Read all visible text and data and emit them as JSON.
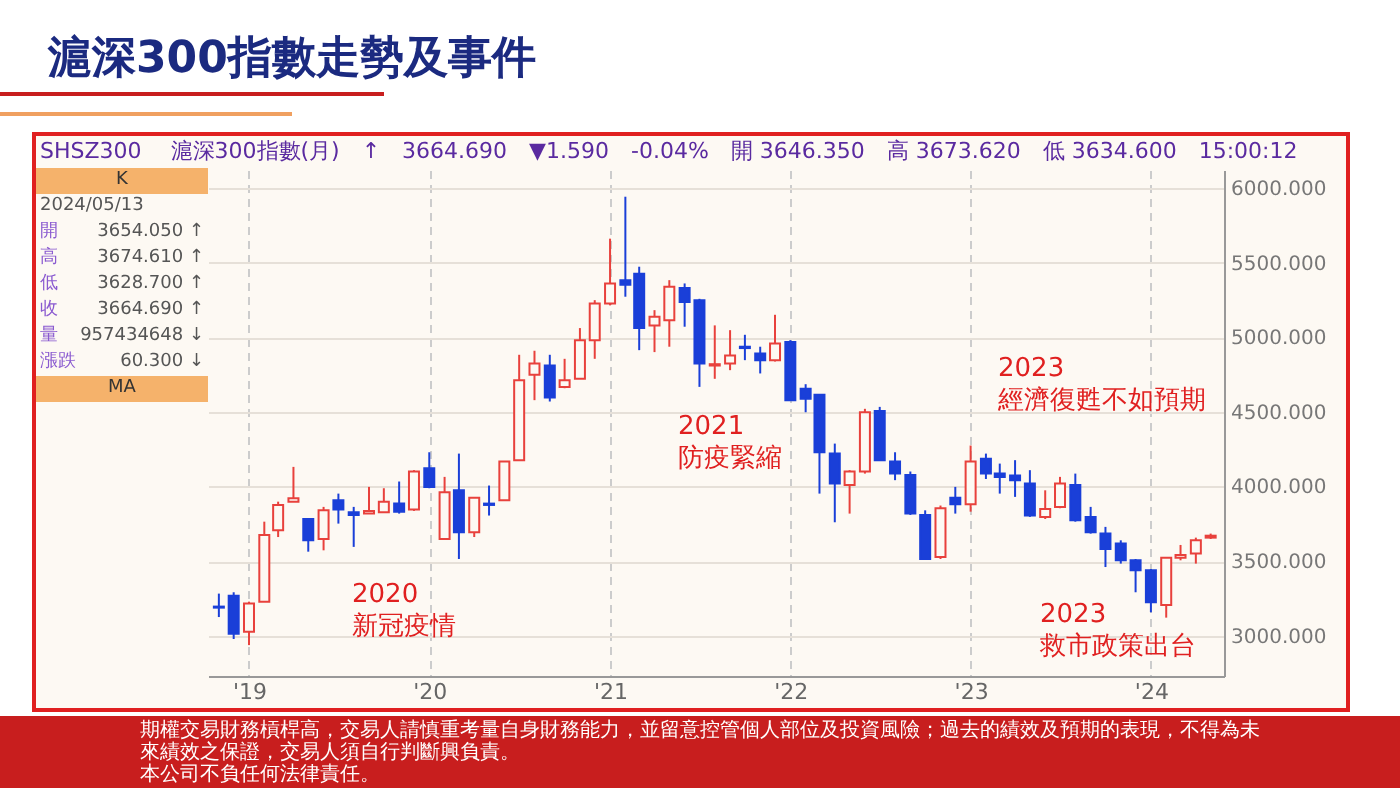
{
  "chart_data": {
    "type": "candlestick",
    "title": "滬深300指數走勢及事件",
    "subtitle": "SHSZ300　 滬深300指數(月)　↑　3664.690　▼1.590　-0.04%　開 3646.350　高 3673.620　低 3634.600　15:00:12",
    "x": [
      "2018-11",
      "2018-12",
      "2019-01",
      "2019-02",
      "2019-03",
      "2019-04",
      "2019-05",
      "2019-06",
      "2019-07",
      "2019-08",
      "2019-09",
      "2019-10",
      "2019-11",
      "2019-12",
      "2020-01",
      "2020-02",
      "2020-03",
      "2020-04",
      "2020-05",
      "2020-06",
      "2020-07",
      "2020-08",
      "2020-09",
      "2020-10",
      "2020-11",
      "2020-12",
      "2021-01",
      "2021-02",
      "2021-03",
      "2021-04",
      "2021-05",
      "2021-06",
      "2021-07",
      "2021-08",
      "2021-09",
      "2021-10",
      "2021-11",
      "2021-12",
      "2022-01",
      "2022-02",
      "2022-03",
      "2022-04",
      "2022-05",
      "2022-06",
      "2022-07",
      "2022-08",
      "2022-09",
      "2022-10",
      "2022-11",
      "2022-12",
      "2023-01",
      "2023-02",
      "2023-03",
      "2023-04",
      "2023-05",
      "2023-06",
      "2023-07",
      "2023-08",
      "2023-09",
      "2023-10",
      "2023-11",
      "2023-12",
      "2024-01",
      "2024-02",
      "2024-03",
      "2024-04",
      "2024-05"
    ],
    "ohlc": [
      [
        3195,
        3282,
        3125,
        3188
      ],
      [
        3268,
        3291,
        2978,
        3013
      ],
      [
        3027,
        3228,
        2937,
        3215
      ],
      [
        3228,
        3764,
        3228,
        3675
      ],
      [
        3706,
        3898,
        3661,
        3876
      ],
      [
        3898,
        4131,
        3898,
        3921
      ],
      [
        3782,
        3782,
        3563,
        3639
      ],
      [
        3648,
        3863,
        3572,
        3840
      ],
      [
        3907,
        3952,
        3751,
        3845
      ],
      [
        3827,
        3863,
        3595,
        3809
      ],
      [
        3818,
        3997,
        3818,
        3836
      ],
      [
        3827,
        3988,
        3827,
        3898
      ],
      [
        3885,
        4033,
        3818,
        3831
      ],
      [
        3845,
        4109,
        3836,
        4100
      ],
      [
        4122,
        4229,
        3988,
        3997
      ],
      [
        3648,
        4064,
        3648,
        3961
      ],
      [
        3974,
        4220,
        3514,
        3693
      ],
      [
        3693,
        3925,
        3661,
        3925
      ],
      [
        3885,
        4006,
        3805,
        3876
      ],
      [
        3907,
        4167,
        3907,
        4167
      ],
      [
        4176,
        4882,
        4176,
        4712
      ],
      [
        4748,
        4909,
        4578,
        4824
      ],
      [
        4810,
        4882,
        4569,
        4596
      ],
      [
        4667,
        4855,
        4658,
        4712
      ],
      [
        4721,
        5061,
        4721,
        4980
      ],
      [
        4980,
        5248,
        4855,
        5226
      ],
      [
        5226,
        5660,
        5213,
        5360
      ],
      [
        5382,
        5941,
        5271,
        5351
      ],
      [
        5425,
        5472,
        4913,
        5061
      ],
      [
        5079,
        5181,
        4900,
        5137
      ],
      [
        5114,
        5382,
        4936,
        5338
      ],
      [
        5329,
        5360,
        5070,
        5235
      ],
      [
        5248,
        5257,
        4667,
        4824
      ],
      [
        4810,
        5079,
        4721,
        4819
      ],
      [
        4824,
        5047,
        4779,
        4877
      ],
      [
        4936,
        5016,
        4846,
        4927
      ],
      [
        4891,
        4936,
        4757,
        4846
      ],
      [
        4846,
        5150,
        4837,
        4958
      ],
      [
        4967,
        4980,
        4578,
        4578
      ],
      [
        4654,
        4685,
        4497,
        4587
      ],
      [
        4614,
        4614,
        3952,
        4229
      ],
      [
        4220,
        4287,
        3760,
        4019
      ],
      [
        4010,
        4109,
        3818,
        4100
      ],
      [
        4100,
        4520,
        4086,
        4497
      ],
      [
        4506,
        4533,
        4176,
        4176
      ],
      [
        4167,
        4229,
        4042,
        4086
      ],
      [
        4077,
        4100,
        3809,
        3818
      ],
      [
        3809,
        3840,
        3514,
        3514
      ],
      [
        3528,
        3872,
        3514,
        3854
      ],
      [
        3925,
        3997,
        3818,
        3880
      ],
      [
        3880,
        4274,
        3831,
        4167
      ],
      [
        4185,
        4220,
        4050,
        4086
      ],
      [
        4086,
        4153,
        3952,
        4064
      ],
      [
        4073,
        4176,
        3930,
        4042
      ],
      [
        4019,
        4109,
        3796,
        3805
      ],
      [
        3796,
        3974,
        3782,
        3849
      ],
      [
        3863,
        4064,
        3854,
        4019
      ],
      [
        4010,
        4086,
        3764,
        3773
      ],
      [
        3796,
        3863,
        3684,
        3693
      ],
      [
        3684,
        3729,
        3460,
        3581
      ],
      [
        3617,
        3639,
        3483,
        3505
      ],
      [
        3505,
        3514,
        3291,
        3438
      ],
      [
        3438,
        3447,
        3157,
        3224
      ],
      [
        3206,
        3523,
        3121,
        3523
      ],
      [
        3523,
        3608,
        3505,
        3541
      ],
      [
        3550,
        3657,
        3483,
        3639
      ],
      [
        3657,
        3684,
        3648,
        3670
      ]
    ],
    "colors": [
      "#1a3fd8",
      "#1a3fd8",
      "#e8413c",
      "#e8413c",
      "#e8413c",
      "#e8413c",
      "#1a3fd8",
      "#e8413c",
      "#1a3fd8",
      "#1a3fd8",
      "#e8413c",
      "#e8413c",
      "#1a3fd8",
      "#e8413c",
      "#1a3fd8",
      "#e8413c",
      "#1a3fd8",
      "#e8413c",
      "#1a3fd8",
      "#e8413c",
      "#e8413c",
      "#e8413c",
      "#1a3fd8",
      "#e8413c",
      "#e8413c",
      "#e8413c",
      "#e8413c",
      "#1a3fd8",
      "#1a3fd8",
      "#e8413c",
      "#e8413c",
      "#1a3fd8",
      "#1a3fd8",
      "#e8413c",
      "#e8413c",
      "#1a3fd8",
      "#1a3fd8",
      "#e8413c",
      "#1a3fd8",
      "#1a3fd8",
      "#1a3fd8",
      "#1a3fd8",
      "#e8413c",
      "#e8413c",
      "#1a3fd8",
      "#1a3fd8",
      "#1a3fd8",
      "#1a3fd8",
      "#e8413c",
      "#1a3fd8",
      "#e8413c",
      "#1a3fd8",
      "#1a3fd8",
      "#1a3fd8",
      "#1a3fd8",
      "#e8413c",
      "#e8413c",
      "#1a3fd8",
      "#1a3fd8",
      "#1a3fd8",
      "#1a3fd8",
      "#1a3fd8",
      "#1a3fd8",
      "#e8413c",
      "#e8413c",
      "#e8413c",
      "#e8413c"
    ],
    "xlim": [
      "2018-10-10",
      "2024-05-28"
    ],
    "xticks": [
      {
        "value": "2019-01",
        "label": "'19"
      },
      {
        "value": "2020-01",
        "label": "'20"
      },
      {
        "value": "2021-01",
        "label": "'21"
      },
      {
        "value": "2022-01",
        "label": "'22"
      },
      {
        "value": "2023-01",
        "label": "'23"
      },
      {
        "value": "2024-01",
        "label": "'24"
      }
    ],
    "ylim": [
      2730,
      6120
    ],
    "yticks": [
      {
        "value": 3000,
        "label": "3000.000"
      },
      {
        "value": 3500,
        "label": "3500.000"
      },
      {
        "value": 4000,
        "label": "4000.000"
      },
      {
        "value": 4500,
        "label": "4500.000"
      },
      {
        "value": 5000,
        "label": "5000.000"
      },
      {
        "value": 5500,
        "label": "5500.000"
      },
      {
        "value": 6000,
        "label": "6000.000"
      }
    ],
    "grid": true,
    "annotations": [
      "K",
      "2024/05/13",
      "開 3654.050 ↑",
      "高 3674.610 ↑",
      "低 3628.700 ↑",
      "收 3664.690 ↑",
      "量 957434648 ↓",
      "漲跌 60.300 ↓",
      "MA",
      "2020\n新冠疫情",
      "2021\n防疫緊縮",
      "2023\n經濟復甦不如預期",
      "2023\n救市政策出台",
      "期權交易財務槓桿高，交易人請慎重考量自身財務能力，並留意控管個人部位及投資風險；過去的績效及預期的表現，不得為未來績效之保證，交易人須自行判斷興負責。",
      "本公司不負任何法律責任。"
    ]
  }
}
